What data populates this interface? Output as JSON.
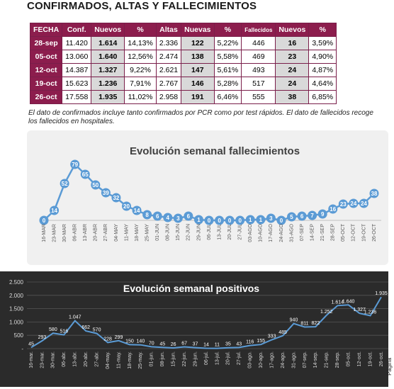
{
  "page": {
    "title": "CONFIRMADOS, ALTAS Y FALLECIMIENTOS",
    "note": "El dato de confirmados incluye tanto confirmados por PCR como por test rápidos. El dato de fallecidos recoge los fallecidos en hospitales.",
    "page_label": "Página"
  },
  "table": {
    "headers": [
      "FECHA",
      "Conf.",
      "Nuevos",
      "%",
      "Altas",
      "Nuevas",
      "%",
      "Fallecidos",
      "Nuevos",
      "%"
    ],
    "rows": [
      [
        "28-sep",
        "11.420",
        "1.614",
        "14,13%",
        "2.336",
        "122",
        "5,22%",
        "446",
        "16",
        "3,59%"
      ],
      [
        "05-oct",
        "13.060",
        "1.640",
        "12,56%",
        "2.474",
        "138",
        "5,58%",
        "469",
        "23",
        "4,90%"
      ],
      [
        "12-oct",
        "14.387",
        "1.327",
        "9,22%",
        "2.621",
        "147",
        "5,61%",
        "493",
        "24",
        "4,87%"
      ],
      [
        "19-oct",
        "15.623",
        "1.236",
        "7,91%",
        "2.767",
        "146",
        "5,28%",
        "517",
        "24",
        "4,64%"
      ],
      [
        "26-oct",
        "17.558",
        "1.935",
        "11,02%",
        "2.958",
        "191",
        "6,46%",
        "555",
        "38",
        "6,85%"
      ]
    ]
  },
  "colors": {
    "header": "#8c1d4d",
    "series": "#5b9bd5",
    "dark_bg": "#2b2b2b",
    "light_bg": "#f0f0f0"
  },
  "chart_data": [
    {
      "type": "line",
      "title": "Evolución semanal fallecimientos",
      "categories": [
        "16-MAR",
        "23-MAR",
        "30-MAR",
        "06-ABR",
        "13-ABR",
        "20-ABR",
        "27-ABR",
        "04-MAY",
        "11-MAY",
        "18-MAY",
        "25-MAY",
        "01-JUN",
        "08-JUN",
        "15-JUN",
        "22-JUN",
        "29-JUN",
        "06-JUL",
        "13-JUL",
        "20-JUL",
        "27-JUL",
        "03-AGO",
        "10-AGO",
        "17-AGO",
        "24-AGO",
        "31-AGO",
        "07-SEP",
        "14-SEP",
        "21-SEP",
        "28-SEP",
        "05-OCT",
        "12-OCT",
        "19-OCT",
        "26-OCT"
      ],
      "values": [
        0,
        14,
        52,
        79,
        65,
        50,
        39,
        32,
        20,
        14,
        8,
        6,
        4,
        3,
        6,
        1,
        0,
        0,
        0,
        0,
        1,
        1,
        3,
        0,
        5,
        6,
        7,
        9,
        16,
        23,
        24,
        24,
        38
      ],
      "ylim": [
        0,
        85
      ],
      "grid": false
    },
    {
      "type": "line",
      "title": "Evolución semanal positivos",
      "categories": [
        "16-mar.",
        "23-mar.",
        "30-mar.",
        "06-abr.",
        "13-abr.",
        "20-abr.",
        "27-abr.",
        "04-may.",
        "11-may.",
        "18-may.",
        "25-may.",
        "01-jun.",
        "08-jun.",
        "15-jun.",
        "22-jun.",
        "29-jun.",
        "06-jul.",
        "13-jul.",
        "20-jul.",
        "27-jul.",
        "03-ago.",
        "10-ago.",
        "17-ago.",
        "24-ago.",
        "31-ago.",
        "07-sep.",
        "14-sep.",
        "21-sep.",
        "28-sep.",
        "05-oct.",
        "12-oct.",
        "19-oct.",
        "26-oct."
      ],
      "values": [
        45,
        293,
        580,
        516,
        1047,
        662,
        570,
        228,
        299,
        150,
        140,
        70,
        45,
        26,
        67,
        37,
        14,
        11,
        35,
        43,
        116,
        155,
        333,
        485,
        940,
        811,
        822,
        1252,
        1614,
        1640,
        1327,
        1236,
        1935
      ],
      "value_labels": [
        "45",
        "293",
        "580",
        "516",
        "1.047",
        "662",
        "570",
        "228",
        "299",
        "150",
        "140",
        "70",
        "45",
        "26",
        "67",
        "37",
        "14",
        "11",
        "35",
        "43",
        "116",
        "155",
        "333",
        "485",
        "940",
        "811",
        "822",
        "1.252",
        "1.614",
        "1.640",
        "1.327",
        "1.236",
        "1.935"
      ],
      "yticks": [
        "-",
        "500",
        "1.000",
        "1.500",
        "2.000",
        "2.500"
      ],
      "ylim": [
        0,
        2500
      ],
      "grid": true
    }
  ]
}
